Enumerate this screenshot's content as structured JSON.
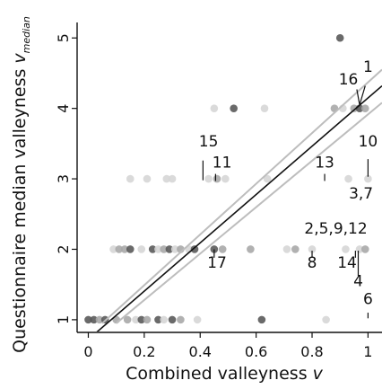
{
  "chart_data": {
    "type": "scatter",
    "xlabel_main": "Combined valleyness ",
    "xlabel_var": "v",
    "ylabel_main": "Questionnaire median valleyness ",
    "ylabel_var": "v",
    "ylabel_sub": "median",
    "xlim": [
      -0.04,
      1.05
    ],
    "ylim": [
      0.82,
      5.22
    ],
    "x_ticks": [
      0,
      0.2,
      0.4,
      0.6,
      0.8,
      1
    ],
    "x_tick_labels": [
      "0",
      "0.2",
      "0.4",
      "0.6",
      "0.8",
      "1"
    ],
    "y_ticks": [
      1,
      2,
      3,
      4,
      5
    ],
    "y_tick_labels": [
      "1",
      "2",
      "3",
      "4",
      "5"
    ],
    "grid": false,
    "legend": "none",
    "colors": {
      "axis": "#111111",
      "fit_line": "#111111",
      "confidence_band": "#bdbdbd",
      "point_light": "#d6d6d6",
      "point_mid": "#a8a8a8",
      "point_dark": "#5a5a5a"
    },
    "fit_line": {
      "x0": 0.0,
      "y0": 0.72,
      "x1": 1.05,
      "y1": 4.32
    },
    "confidence_band_upper": {
      "x0": 0.05,
      "y0": 0.95,
      "x1": 1.05,
      "y1": 4.55
    },
    "confidence_band_lower": {
      "x0": 0.1,
      "y0": 0.95,
      "x1": 1.05,
      "y1": 4.08
    },
    "points": [
      {
        "x": 0.0,
        "y": 1,
        "c": "dark"
      },
      {
        "x": 0.02,
        "y": 1,
        "c": "dark"
      },
      {
        "x": 0.04,
        "y": 1,
        "c": "mid"
      },
      {
        "x": 0.06,
        "y": 1,
        "c": "dark"
      },
      {
        "x": 0.1,
        "y": 1,
        "c": "mid"
      },
      {
        "x": 0.14,
        "y": 1,
        "c": "mid"
      },
      {
        "x": 0.17,
        "y": 1,
        "c": "light"
      },
      {
        "x": 0.19,
        "y": 1,
        "c": "dark"
      },
      {
        "x": 0.21,
        "y": 1,
        "c": "mid"
      },
      {
        "x": 0.25,
        "y": 1,
        "c": "dark"
      },
      {
        "x": 0.27,
        "y": 1,
        "c": "light"
      },
      {
        "x": 0.3,
        "y": 1,
        "c": "dark"
      },
      {
        "x": 0.33,
        "y": 1,
        "c": "mid"
      },
      {
        "x": 0.39,
        "y": 1,
        "c": "light"
      },
      {
        "x": 0.62,
        "y": 1,
        "c": "dark"
      },
      {
        "x": 0.85,
        "y": 1,
        "c": "light"
      },
      {
        "x": 0.09,
        "y": 2,
        "c": "light"
      },
      {
        "x": 0.11,
        "y": 2,
        "c": "mid"
      },
      {
        "x": 0.13,
        "y": 2,
        "c": "mid"
      },
      {
        "x": 0.15,
        "y": 2,
        "c": "dark"
      },
      {
        "x": 0.19,
        "y": 2,
        "c": "light"
      },
      {
        "x": 0.23,
        "y": 2,
        "c": "dark"
      },
      {
        "x": 0.25,
        "y": 2,
        "c": "light"
      },
      {
        "x": 0.27,
        "y": 2,
        "c": "mid"
      },
      {
        "x": 0.29,
        "y": 2,
        "c": "dark"
      },
      {
        "x": 0.31,
        "y": 2,
        "c": "light"
      },
      {
        "x": 0.33,
        "y": 2,
        "c": "mid"
      },
      {
        "x": 0.36,
        "y": 2,
        "c": "light"
      },
      {
        "x": 0.38,
        "y": 2,
        "c": "dark"
      },
      {
        "x": 0.45,
        "y": 2,
        "c": "dark"
      },
      {
        "x": 0.48,
        "y": 2,
        "c": "mid"
      },
      {
        "x": 0.58,
        "y": 2,
        "c": "mid"
      },
      {
        "x": 0.71,
        "y": 2,
        "c": "light"
      },
      {
        "x": 0.74,
        "y": 2,
        "c": "mid"
      },
      {
        "x": 0.8,
        "y": 2,
        "c": "light"
      },
      {
        "x": 0.92,
        "y": 2,
        "c": "light"
      },
      {
        "x": 0.97,
        "y": 2,
        "c": "light"
      },
      {
        "x": 0.99,
        "y": 2,
        "c": "mid"
      },
      {
        "x": 0.15,
        "y": 3,
        "c": "light"
      },
      {
        "x": 0.21,
        "y": 3,
        "c": "light"
      },
      {
        "x": 0.28,
        "y": 3,
        "c": "light"
      },
      {
        "x": 0.3,
        "y": 3,
        "c": "light"
      },
      {
        "x": 0.43,
        "y": 3,
        "c": "light"
      },
      {
        "x": 0.46,
        "y": 3,
        "c": "mid"
      },
      {
        "x": 0.49,
        "y": 3,
        "c": "light"
      },
      {
        "x": 0.64,
        "y": 3,
        "c": "light"
      },
      {
        "x": 0.93,
        "y": 3,
        "c": "light"
      },
      {
        "x": 1.0,
        "y": 3,
        "c": "light"
      },
      {
        "x": 0.45,
        "y": 4,
        "c": "light"
      },
      {
        "x": 0.52,
        "y": 4,
        "c": "dark"
      },
      {
        "x": 0.63,
        "y": 4,
        "c": "light"
      },
      {
        "x": 0.88,
        "y": 4,
        "c": "mid"
      },
      {
        "x": 0.91,
        "y": 4,
        "c": "light"
      },
      {
        "x": 0.95,
        "y": 4,
        "c": "mid"
      },
      {
        "x": 0.97,
        "y": 4,
        "c": "dark"
      },
      {
        "x": 0.99,
        "y": 4,
        "c": "mid"
      },
      {
        "x": 0.9,
        "y": 5,
        "c": "dark"
      }
    ],
    "annotations": [
      {
        "text": "1",
        "x": 1.0,
        "y": 4.52,
        "lx1": 0.99,
        "ly1": 4.32,
        "lx2": 0.97,
        "ly2": 4.05
      },
      {
        "text": "16",
        "x": 0.93,
        "y": 4.34,
        "lx1": 0.96,
        "ly1": 4.27,
        "lx2": 0.97,
        "ly2": 4.05
      },
      {
        "text": "15",
        "x": 0.43,
        "y": 3.46,
        "lx1": 0.41,
        "ly1": 3.26,
        "lx2": 0.41,
        "ly2": 2.98
      },
      {
        "text": "11",
        "x": 0.478,
        "y": 3.16,
        "lx1": 0.455,
        "ly1": 3.07,
        "lx2": 0.455,
        "ly2": 2.97
      },
      {
        "text": "13",
        "x": 0.845,
        "y": 3.16,
        "lx1": 0.845,
        "ly1": 3.07,
        "lx2": 0.845,
        "ly2": 2.97
      },
      {
        "text": "10",
        "x": 1.0,
        "y": 3.46,
        "lx1": 1.0,
        "ly1": 3.28,
        "lx2": 1.0,
        "ly2": 3.03
      },
      {
        "text": "3,7",
        "x": 0.975,
        "y": 2.72,
        "lx1": 0.0,
        "ly1": 0.0,
        "lx2": 0.0,
        "ly2": 0.0
      },
      {
        "text": "2,5,9,12",
        "x": 0.885,
        "y": 2.22,
        "lx1": 0.0,
        "ly1": 0.0,
        "lx2": 0.0,
        "ly2": 0.0
      },
      {
        "text": "17",
        "x": 0.46,
        "y": 1.74,
        "lx1": 0.45,
        "ly1": 1.88,
        "lx2": 0.45,
        "ly2": 2.0
      },
      {
        "text": "8",
        "x": 0.8,
        "y": 1.74,
        "lx1": 0.8,
        "ly1": 1.88,
        "lx2": 0.8,
        "ly2": 1.98
      },
      {
        "text": "14",
        "x": 0.925,
        "y": 1.74,
        "lx1": 0.955,
        "ly1": 1.88,
        "lx2": 0.955,
        "ly2": 1.98
      },
      {
        "text": "4",
        "x": 0.965,
        "y": 1.48,
        "lx1": 0.965,
        "ly1": 1.62,
        "lx2": 0.965,
        "ly2": 1.98
      },
      {
        "text": "6",
        "x": 1.0,
        "y": 1.22,
        "lx1": 1.0,
        "ly1": 1.1,
        "lx2": 1.0,
        "ly2": 1.02
      }
    ]
  }
}
